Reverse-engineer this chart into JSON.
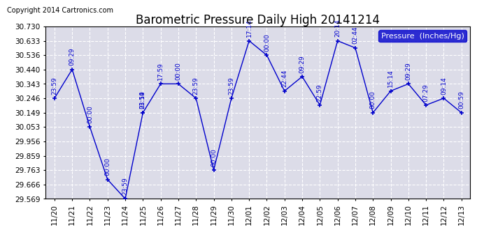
{
  "title": "Barometric Pressure Daily High 20141214",
  "copyright": "Copyright 2014 Cartronics.com",
  "legend_label": "Pressure  (Inches/Hg)",
  "x_labels": [
    "11/20",
    "11/21",
    "11/22",
    "11/23",
    "11/24",
    "11/25",
    "11/26",
    "11/27",
    "11/28",
    "11/29",
    "11/30",
    "12/01",
    "12/02",
    "12/03",
    "12/04",
    "12/05",
    "12/06",
    "12/07",
    "12/08",
    "12/09",
    "12/10",
    "12/11",
    "12/12",
    "12/13"
  ],
  "line_points": [
    [
      0,
      30.246,
      "23:59"
    ],
    [
      1,
      30.44,
      "09:29"
    ],
    [
      2,
      30.053,
      "00:00"
    ],
    [
      3,
      29.699,
      "00:00"
    ],
    [
      4,
      29.569,
      "23:59"
    ],
    [
      5,
      30.149,
      "23:14"
    ],
    [
      5,
      30.149,
      "01:59"
    ],
    [
      6,
      30.343,
      "17:59"
    ],
    [
      7,
      30.343,
      "00:00"
    ],
    [
      8,
      30.246,
      "23:59"
    ],
    [
      9,
      29.763,
      "00:00"
    ],
    [
      10,
      30.246,
      "23:59"
    ],
    [
      11,
      30.633,
      "17:14"
    ],
    [
      12,
      30.536,
      "00:00"
    ],
    [
      13,
      30.295,
      "22:44"
    ],
    [
      14,
      30.392,
      "09:29"
    ],
    [
      15,
      30.2,
      "22:59"
    ],
    [
      16,
      30.633,
      "20:14"
    ],
    [
      17,
      30.585,
      "02:44"
    ],
    [
      18,
      30.149,
      "00:00"
    ],
    [
      19,
      30.295,
      "15:14"
    ],
    [
      20,
      30.343,
      "09:29"
    ],
    [
      21,
      30.2,
      "07:29"
    ],
    [
      22,
      30.246,
      "09:14"
    ],
    [
      23,
      30.149,
      "00:59"
    ]
  ],
  "line_color": "#0000cc",
  "bg_color": "#ffffff",
  "plot_bg_color": "#dcdce8",
  "grid_color": "#ffffff",
  "ylim_min": 29.569,
  "ylim_max": 30.73,
  "yticks": [
    29.569,
    29.666,
    29.763,
    29.859,
    29.956,
    30.053,
    30.149,
    30.246,
    30.343,
    30.44,
    30.536,
    30.633,
    30.73
  ],
  "font_size_title": 12,
  "font_size_ticks": 7.5,
  "font_size_annot": 6.5,
  "font_size_copy": 7,
  "font_size_legend": 8
}
